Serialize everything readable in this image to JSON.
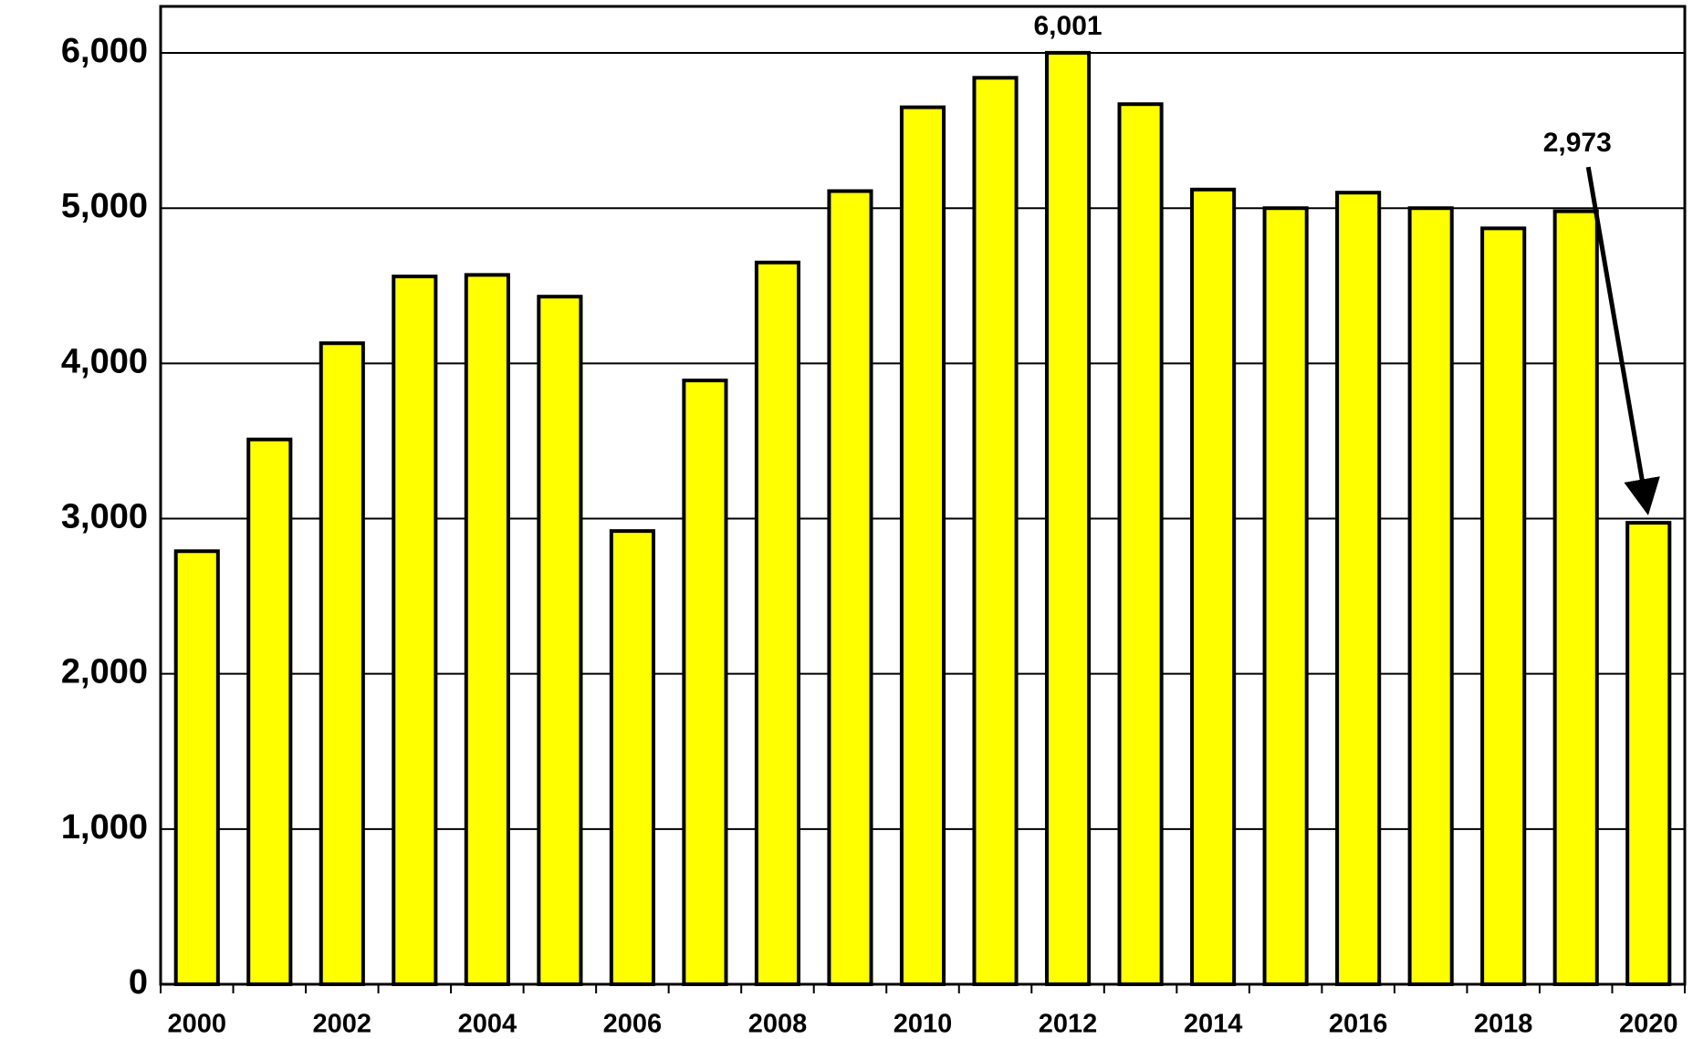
{
  "chart_data": {
    "type": "bar",
    "categories": [
      "2000",
      null,
      "2002",
      null,
      "2004",
      null,
      "2006",
      null,
      "2008",
      null,
      "2010",
      null,
      "2012",
      null,
      "2014",
      null,
      "2016",
      null,
      "2018",
      null,
      "2020"
    ],
    "values": [
      2790,
      3510,
      4130,
      4560,
      4570,
      4430,
      2920,
      3890,
      4650,
      5110,
      5650,
      5840,
      6001,
      5670,
      5120,
      5000,
      5100,
      5000,
      4870,
      4980,
      2973
    ],
    "value_labels": [
      null,
      null,
      null,
      null,
      null,
      null,
      null,
      null,
      null,
      null,
      null,
      null,
      "6,001",
      null,
      null,
      null,
      null,
      null,
      null,
      null,
      "2,973"
    ],
    "color": "#ffff00",
    "ylim": [
      0,
      6300
    ],
    "yticks": [
      0,
      {
        "value": 1000,
        "label": "1,000"
      },
      {
        "value": 2000,
        "label": "2,000"
      },
      {
        "value": 3000,
        "label": "3,000"
      },
      {
        "value": 4000,
        "label": "4,000"
      },
      {
        "value": 5000,
        "label": "5,000"
      },
      {
        "value": 6000,
        "label": "6,000"
      }
    ],
    "grid": true
  }
}
